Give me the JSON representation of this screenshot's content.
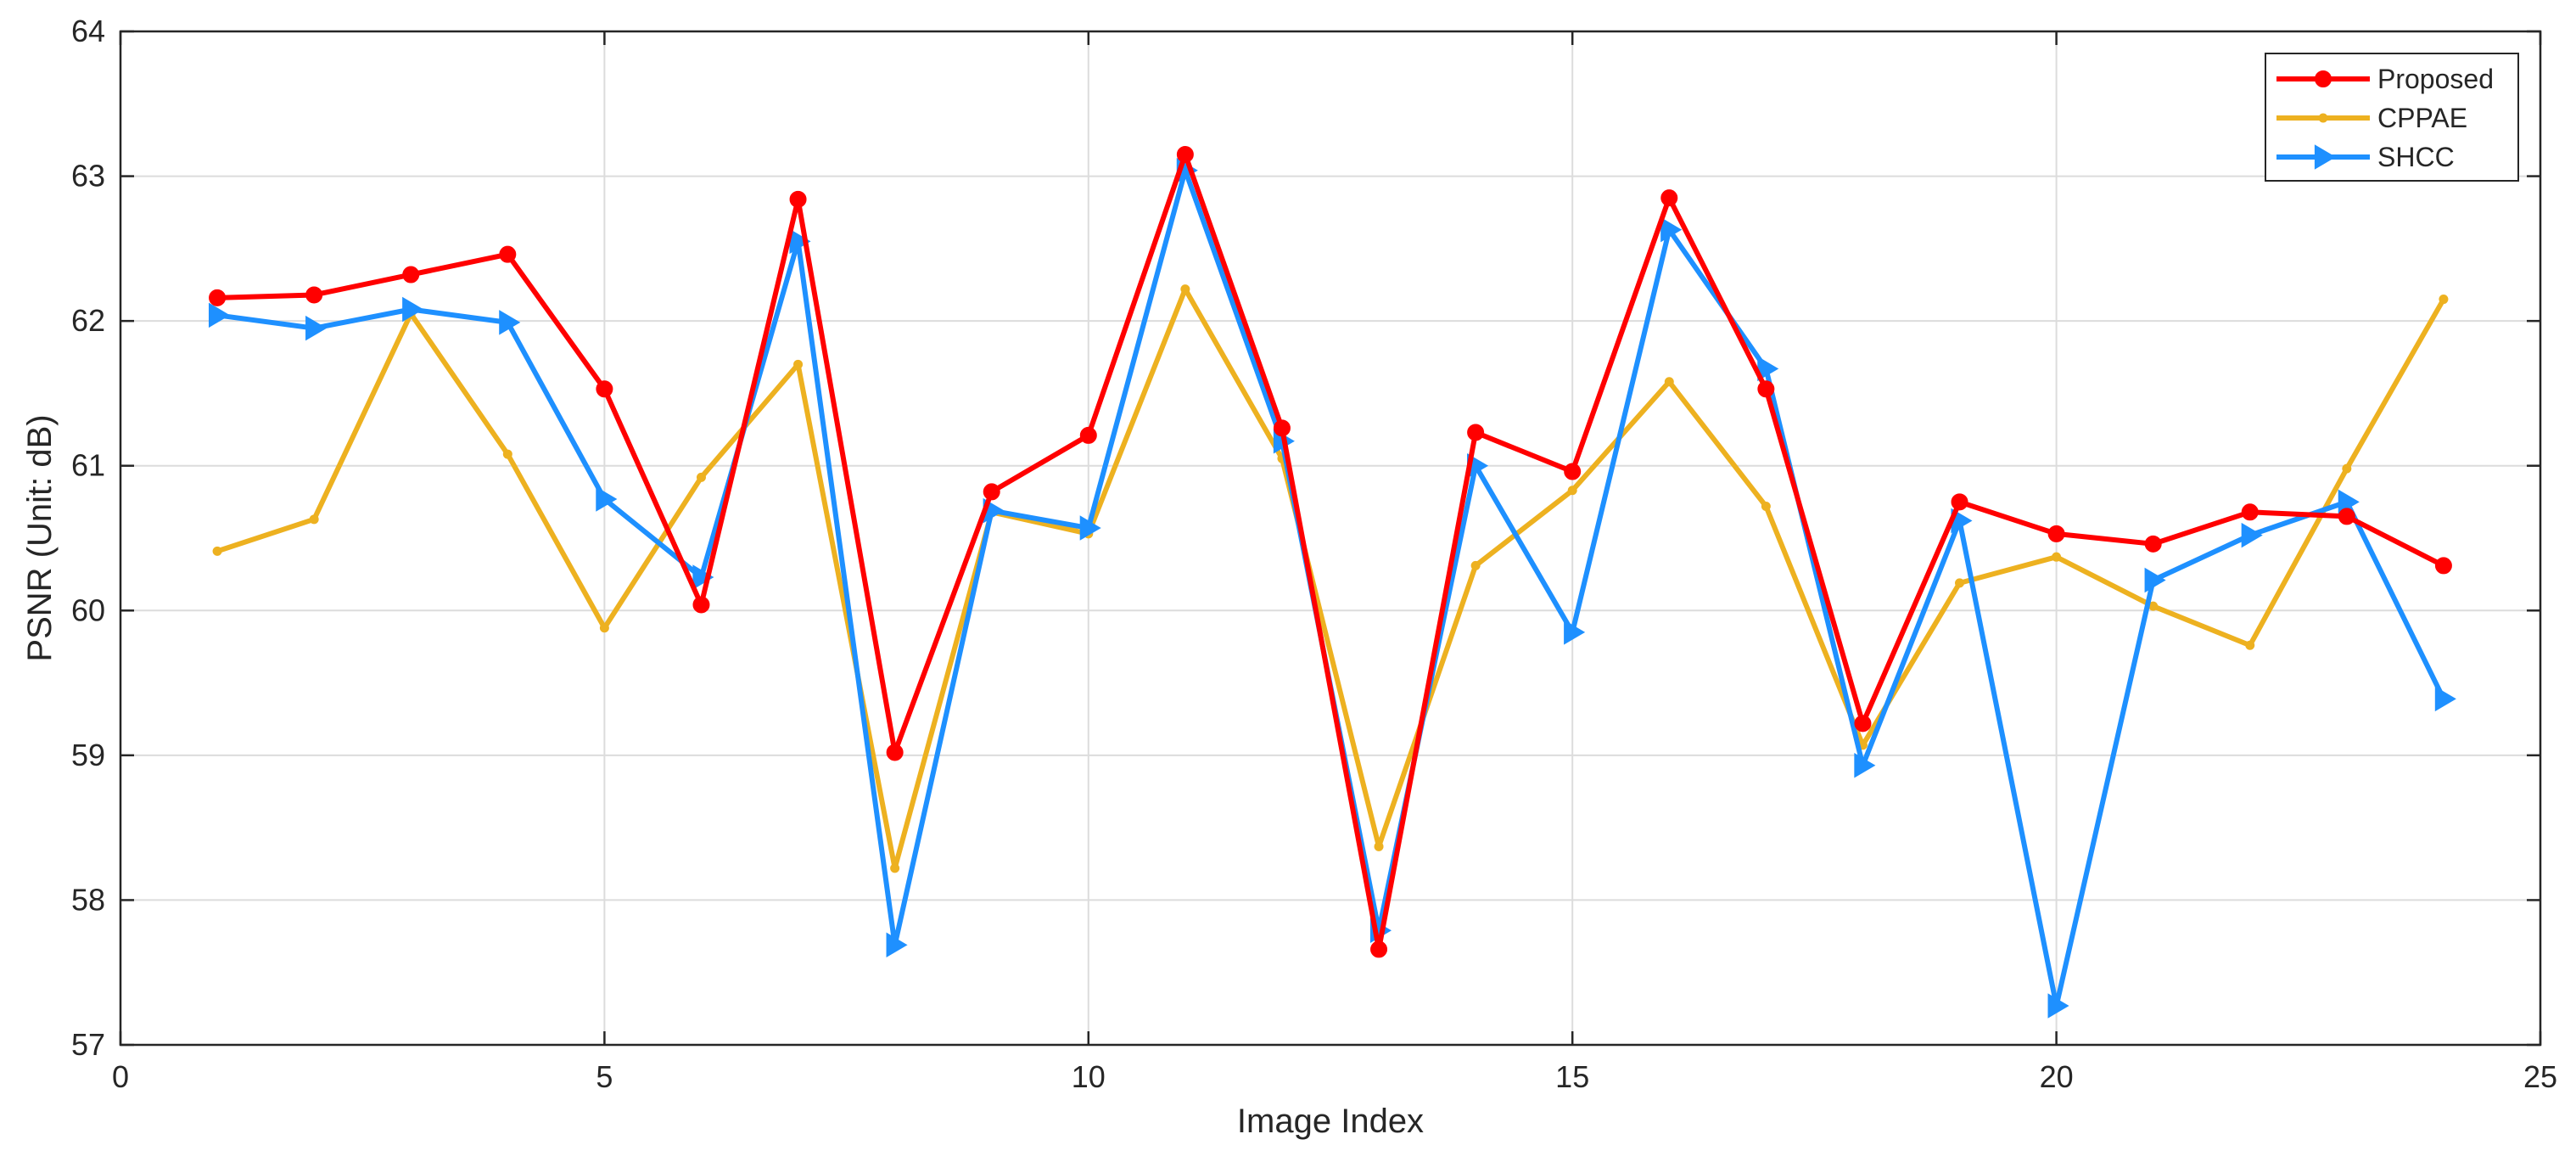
{
  "chart_data": {
    "type": "line",
    "xlabel": "Image Index",
    "ylabel": "PSNR (Unit: dB)",
    "xlim": [
      0,
      25
    ],
    "ylim": [
      57,
      64
    ],
    "xticks": [
      0,
      5,
      10,
      15,
      20,
      25
    ],
    "yticks": [
      57,
      58,
      59,
      60,
      61,
      62,
      63,
      64
    ],
    "grid": true,
    "legend_position": "top-right",
    "x": [
      1,
      2,
      3,
      4,
      5,
      6,
      7,
      8,
      9,
      10,
      11,
      12,
      13,
      14,
      15,
      16,
      17,
      18,
      19,
      20,
      21,
      22,
      23,
      24
    ],
    "series": [
      {
        "name": "Proposed",
        "color": "#ff0000",
        "marker": "circle",
        "values": [
          62.16,
          62.18,
          62.32,
          62.46,
          61.53,
          60.04,
          62.84,
          59.02,
          60.82,
          61.21,
          63.15,
          61.26,
          57.66,
          61.23,
          60.96,
          62.85,
          61.53,
          59.22,
          60.75,
          60.53,
          60.46,
          60.68,
          60.65,
          60.31
        ]
      },
      {
        "name": "CPPAE",
        "color": "#edb120",
        "marker": "point",
        "values": [
          60.41,
          60.63,
          62.05,
          61.08,
          59.88,
          60.92,
          61.7,
          58.22,
          60.68,
          60.53,
          62.22,
          61.05,
          58.37,
          60.31,
          60.83,
          61.58,
          60.72,
          59.07,
          60.19,
          60.37,
          60.03,
          59.76,
          60.98,
          62.15
        ]
      },
      {
        "name": "SHCC",
        "color": "#1e90ff",
        "marker": "triangle-right",
        "values": [
          62.04,
          61.95,
          62.08,
          61.99,
          60.77,
          60.23,
          62.55,
          57.69,
          60.69,
          60.57,
          63.04,
          61.17,
          57.79,
          61.0,
          59.85,
          62.63,
          61.67,
          58.93,
          60.62,
          57.27,
          60.21,
          60.52,
          60.75,
          59.39
        ]
      }
    ]
  }
}
